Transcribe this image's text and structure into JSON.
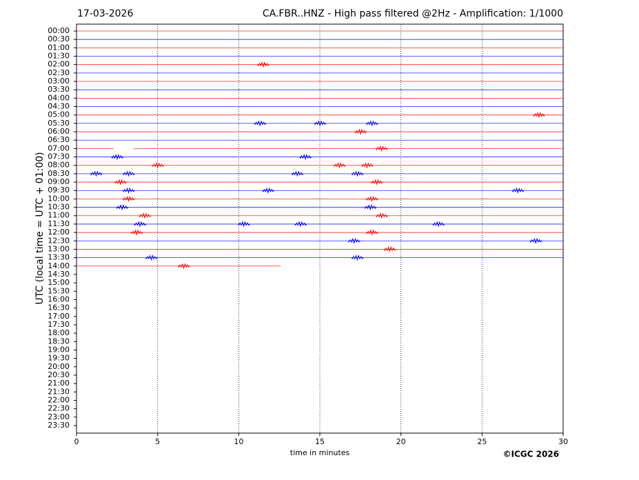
{
  "chart_data": {
    "type": "helicorder",
    "title": "17-03-2026",
    "subtitle": "CA.FBR..HNZ - High pass filtered @2Hz - Amplification: 1/1000",
    "x_label": "time in minutes",
    "y_label": "UTC (local time = UTC + 01:00)",
    "credit": "©ICGC 2026",
    "xlim": [
      0,
      30
    ],
    "xticks": [
      0,
      5,
      10,
      15,
      20,
      25,
      30
    ],
    "grid": true,
    "categories": [
      "00:00",
      "00:30",
      "01:00",
      "01:30",
      "02:00",
      "02:30",
      "03:00",
      "03:30",
      "04:00",
      "04:30",
      "05:00",
      "05:30",
      "06:00",
      "06:30",
      "07:00",
      "07:30",
      "08:00",
      "08:30",
      "09:00",
      "09:30",
      "10:00",
      "10:30",
      "11:00",
      "11:30",
      "12:00",
      "12:30",
      "13:00",
      "13:30",
      "14:00",
      "14:30",
      "15:00",
      "15:30",
      "16:00",
      "16:30",
      "17:00",
      "17:30",
      "18:00",
      "18:30",
      "19:00",
      "19:30",
      "20:00",
      "20:30",
      "21:00",
      "21:30",
      "22:00",
      "22:30",
      "23:00",
      "23:30"
    ],
    "traces": [
      {
        "color": "#ff0000",
        "segments": [
          [
            0,
            30
          ]
        ],
        "events": []
      },
      {
        "color": "#0000ff",
        "segments": [
          [
            0,
            30
          ]
        ],
        "events": []
      },
      {
        "color": "#ff0000",
        "segments": [
          [
            0,
            30
          ]
        ],
        "events": []
      },
      {
        "color": "#0000ff",
        "segments": [
          [
            0,
            30
          ]
        ],
        "events": []
      },
      {
        "color": "#ff0000",
        "segments": [
          [
            0,
            30
          ]
        ],
        "events": [
          11.5
        ]
      },
      {
        "color": "#0000ff",
        "segments": [
          [
            0,
            30
          ]
        ],
        "events": []
      },
      {
        "color": "#ff0000",
        "segments": [
          [
            0,
            30
          ]
        ],
        "events": []
      },
      {
        "color": "#0000ff",
        "segments": [
          [
            0,
            30
          ]
        ],
        "events": []
      },
      {
        "color": "#ff0000",
        "segments": [
          [
            0,
            30
          ]
        ],
        "events": []
      },
      {
        "color": "#0000ff",
        "segments": [
          [
            0,
            30
          ]
        ],
        "events": []
      },
      {
        "color": "#ff0000",
        "segments": [
          [
            0,
            30
          ]
        ],
        "events": [
          28.5
        ]
      },
      {
        "color": "#0000ff",
        "segments": [
          [
            0,
            30
          ]
        ],
        "events": [
          11.3,
          15,
          18.2
        ]
      },
      {
        "color": "#ff0000",
        "segments": [
          [
            0,
            30
          ]
        ],
        "events": [
          17.5
        ]
      },
      {
        "color": "#0000ff",
        "segments": [
          [
            0,
            30
          ]
        ],
        "events": []
      },
      {
        "color": "#ff0000",
        "segments": [
          [
            0,
            2.3
          ],
          [
            3.5,
            30
          ]
        ],
        "events": [
          18.8
        ]
      },
      {
        "color": "#0000ff",
        "segments": [
          [
            0,
            30
          ]
        ],
        "events": [
          2.5,
          14.1
        ]
      },
      {
        "color": "#ff0000",
        "segments": [
          [
            0,
            30
          ]
        ],
        "events": [
          5,
          16.2,
          17.9
        ]
      },
      {
        "color": "#0000ff",
        "segments": [
          [
            0,
            30
          ]
        ],
        "events": [
          1.2,
          3.2,
          13.6,
          17.3
        ]
      },
      {
        "color": "#ff0000",
        "segments": [
          [
            0,
            30
          ]
        ],
        "events": [
          2.7,
          18.5
        ]
      },
      {
        "color": "#0000ff",
        "segments": [
          [
            0,
            30
          ]
        ],
        "events": [
          3.2,
          11.8,
          27.2
        ]
      },
      {
        "color": "#ff0000",
        "segments": [
          [
            0,
            30
          ]
        ],
        "events": [
          3.2,
          18.2
        ]
      },
      {
        "color": "#0000ff",
        "segments": [
          [
            0,
            30
          ]
        ],
        "events": [
          2.8,
          18.1
        ]
      },
      {
        "color": "#ff0000",
        "segments": [
          [
            0,
            30
          ]
        ],
        "events": [
          4.2,
          18.8
        ]
      },
      {
        "color": "#0000ff",
        "segments": [
          [
            0,
            30
          ]
        ],
        "events": [
          3.9,
          10.3,
          13.8,
          22.3
        ]
      },
      {
        "color": "#ff0000",
        "segments": [
          [
            0,
            30
          ]
        ],
        "events": [
          3.7,
          18.2
        ]
      },
      {
        "color": "#0000ff",
        "segments": [
          [
            0,
            30
          ]
        ],
        "events": [
          17.1,
          28.3
        ]
      },
      {
        "color": "#ff0000",
        "segments": [
          [
            0,
            30
          ]
        ],
        "events": [
          19.3
        ]
      },
      {
        "color": "#0000ff",
        "segments": [
          [
            0,
            30
          ]
        ],
        "events": [
          4.6,
          17.3
        ]
      },
      {
        "color": "#ff0000",
        "segments": [
          [
            0,
            12.6
          ]
        ],
        "events": [
          6.6
        ]
      }
    ]
  }
}
